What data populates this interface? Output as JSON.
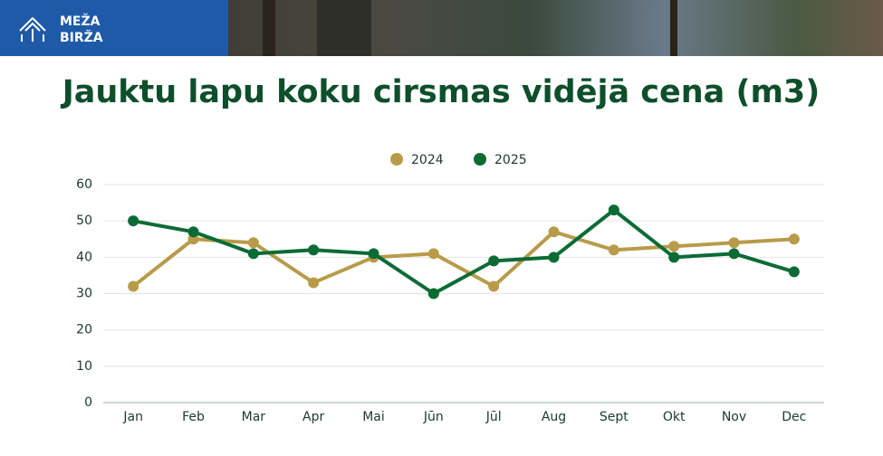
{
  "header": {
    "logo": [
      "MEŽA",
      "BIRŽA"
    ]
  },
  "chart_data": {
    "type": "line",
    "title": "Jauktu lapu koku cirsmas vidējā cena (m3)",
    "categories": [
      "Jan",
      "Feb",
      "Mar",
      "Apr",
      "Mai",
      "Jūn",
      "Jūl",
      "Aug",
      "Sept",
      "Okt",
      "Nov",
      "Dec"
    ],
    "series": [
      {
        "name": "2024",
        "color": "#b89b4a",
        "values": [
          32,
          45,
          44,
          33,
          40,
          41,
          32,
          47,
          42,
          43,
          44,
          45
        ]
      },
      {
        "name": "2025",
        "color": "#0b6b35",
        "values": [
          50,
          47,
          41,
          42,
          41,
          30,
          39,
          40,
          53,
          40,
          41,
          36
        ]
      }
    ],
    "ylim": [
      0,
      60
    ],
    "yticks": [
      0,
      10,
      20,
      30,
      40,
      50,
      60
    ],
    "grid": true,
    "legend": "top"
  }
}
